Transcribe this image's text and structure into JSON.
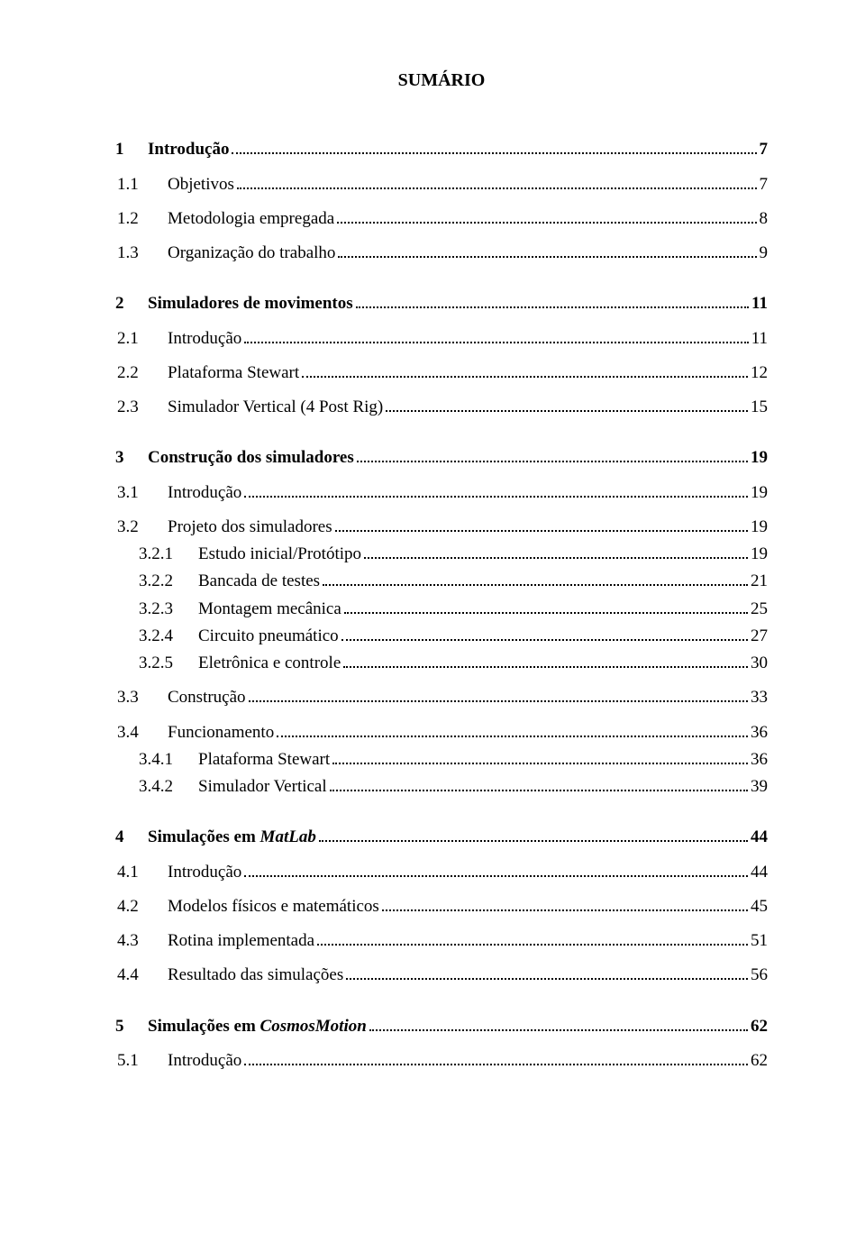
{
  "title": "SUMÁRIO",
  "text_color": "#000000",
  "background_color": "#ffffff",
  "entries": [
    {
      "num": "1",
      "text": "Introdução",
      "page": "7",
      "level": 0,
      "bold": true,
      "space": "big"
    },
    {
      "num": "1.1",
      "text": "Objetivos",
      "page": "7",
      "level": 1,
      "bold": false,
      "space": "med"
    },
    {
      "num": "1.2",
      "text": "Metodologia empregada",
      "page": "8",
      "level": 1,
      "bold": false,
      "space": "med"
    },
    {
      "num": "1.3",
      "text": "Organização do trabalho",
      "page": "9",
      "level": 1,
      "bold": false,
      "space": "med"
    },
    {
      "num": "2",
      "text": "Simuladores de movimentos",
      "page": "11",
      "level": 0,
      "bold": true,
      "space": "big"
    },
    {
      "num": "2.1",
      "text": "Introdução",
      "page": "11",
      "level": 1,
      "bold": false,
      "space": "med"
    },
    {
      "num": "2.2",
      "text": "Plataforma Stewart",
      "page": "12",
      "level": 1,
      "bold": false,
      "space": "med"
    },
    {
      "num": "2.3",
      "text": "Simulador Vertical (4 Post Rig)",
      "page": "15",
      "level": 1,
      "bold": false,
      "space": "med"
    },
    {
      "num": "3",
      "text": "Construção dos simuladores",
      "page": "19",
      "level": 0,
      "bold": true,
      "space": "big"
    },
    {
      "num": "3.1",
      "text": "Introdução",
      "page": "19",
      "level": 1,
      "bold": false,
      "space": "med"
    },
    {
      "num": "3.2",
      "text": "Projeto dos simuladores",
      "page": "19",
      "level": 1,
      "bold": false,
      "space": "med"
    },
    {
      "num": "3.2.1",
      "text": "Estudo inicial/Protótipo",
      "page": "19",
      "level": 2,
      "bold": false,
      "space": "small"
    },
    {
      "num": "3.2.2",
      "text": "Bancada de testes",
      "page": "21",
      "level": 2,
      "bold": false,
      "space": "small"
    },
    {
      "num": "3.2.3",
      "text": "Montagem mecânica",
      "page": "25",
      "level": 2,
      "bold": false,
      "space": "small"
    },
    {
      "num": "3.2.4",
      "text": "Circuito pneumático",
      "page": "27",
      "level": 2,
      "bold": false,
      "space": "small"
    },
    {
      "num": "3.2.5",
      "text": "Eletrônica e controle",
      "page": "30",
      "level": 2,
      "bold": false,
      "space": "small"
    },
    {
      "num": "3.3",
      "text": "Construção",
      "page": "33",
      "level": 1,
      "bold": false,
      "space": "med"
    },
    {
      "num": "3.4",
      "text": "Funcionamento",
      "page": "36",
      "level": 1,
      "bold": false,
      "space": "med"
    },
    {
      "num": "3.4.1",
      "text": "Plataforma Stewart",
      "page": "36",
      "level": 2,
      "bold": false,
      "space": "small"
    },
    {
      "num": "3.4.2",
      "text": "Simulador Vertical",
      "page": "39",
      "level": 2,
      "bold": false,
      "space": "small"
    },
    {
      "num": "4",
      "text_html": "Simulações em <span class='italic'>MatLab</span>",
      "page": "44",
      "level": 0,
      "bold": true,
      "space": "big"
    },
    {
      "num": "4.1",
      "text": "Introdução",
      "page": "44",
      "level": 1,
      "bold": false,
      "space": "med"
    },
    {
      "num": "4.2",
      "text": "Modelos físicos e matemáticos",
      "page": "45",
      "level": 1,
      "bold": false,
      "space": "med"
    },
    {
      "num": "4.3",
      "text": "Rotina implementada",
      "page": "51",
      "level": 1,
      "bold": false,
      "space": "med"
    },
    {
      "num": "4.4",
      "text": "Resultado das simulações",
      "page": "56",
      "level": 1,
      "bold": false,
      "space": "med"
    },
    {
      "num": "5",
      "text_html": "Simulações em <span class='italic'>CosmosMotion</span>",
      "page": "62",
      "level": 0,
      "bold": true,
      "space": "big"
    },
    {
      "num": "5.1",
      "text": "Introdução",
      "page": "62",
      "level": 1,
      "bold": false,
      "space": "med"
    }
  ]
}
